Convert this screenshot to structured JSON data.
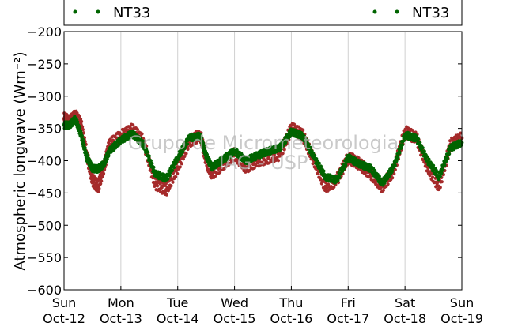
{
  "chart_data": {
    "type": "scatter",
    "title": "",
    "xlabel": "",
    "ylabel": "Atmospheric longwave (Wm⁻²)",
    "ylim": [
      -600,
      -200
    ],
    "yticks": [
      -200,
      -250,
      -300,
      -350,
      -400,
      -450,
      -500,
      -550,
      -600
    ],
    "xticks": [
      {
        "day": "Sun",
        "date": "Oct-12"
      },
      {
        "day": "Mon",
        "date": "Oct-13"
      },
      {
        "day": "Tue",
        "date": "Oct-14"
      },
      {
        "day": "Wed",
        "date": "Oct-15"
      },
      {
        "day": "Thu",
        "date": "Oct-16"
      },
      {
        "day": "Fri",
        "date": "Oct-17"
      },
      {
        "day": "Sat",
        "date": "Oct-18"
      },
      {
        "day": "Sun",
        "date": "Oct-19"
      }
    ],
    "grid": "vertical",
    "legend": {
      "placement": "top",
      "entries": [
        "NT33",
        "NT33"
      ]
    },
    "watermark": [
      "Grupo de Micrometeorologia",
      "IAG - USP"
    ],
    "series": [
      {
        "name": "NT33",
        "color": "#a52a2a",
        "x_days": [
          0,
          0.1,
          0.2,
          0.3,
          0.4,
          0.5,
          0.6,
          0.7,
          0.8,
          1.0,
          1.2,
          1.4,
          1.6,
          1.8,
          2.0,
          2.2,
          2.4,
          2.5,
          2.6,
          2.8,
          3.0,
          3.2,
          3.4,
          3.6,
          3.8,
          4.0,
          4.2,
          4.4,
          4.6,
          4.8,
          5.0,
          5.2,
          5.4,
          5.6,
          5.8,
          6.0,
          6.2,
          6.4,
          6.6,
          6.8,
          7.0
        ],
        "y": [
          -335,
          -340,
          -330,
          -345,
          -390,
          -430,
          -440,
          -410,
          -375,
          -362,
          -352,
          -370,
          -435,
          -445,
          -410,
          -370,
          -360,
          -400,
          -420,
          -405,
          -390,
          -410,
          -400,
          -395,
          -390,
          -350,
          -360,
          -400,
          -440,
          -430,
          -395,
          -405,
          -420,
          -440,
          -415,
          -355,
          -365,
          -410,
          -440,
          -375,
          -365
        ]
      },
      {
        "name": "NT33",
        "color": "#006400",
        "x_days": [
          0,
          0.1,
          0.2,
          0.3,
          0.4,
          0.5,
          0.6,
          0.7,
          0.8,
          1.0,
          1.2,
          1.4,
          1.6,
          1.8,
          2.0,
          2.2,
          2.4,
          2.5,
          2.6,
          2.8,
          3.0,
          3.2,
          3.4,
          3.6,
          3.8,
          4.0,
          4.2,
          4.4,
          4.6,
          4.8,
          5.0,
          5.2,
          5.4,
          5.6,
          5.8,
          6.0,
          6.2,
          6.4,
          6.6,
          6.8,
          7.0
        ],
        "y": [
          -345,
          -345,
          -335,
          -360,
          -395,
          -412,
          -413,
          -405,
          -385,
          -368,
          -358,
          -375,
          -420,
          -428,
          -395,
          -365,
          -362,
          -392,
          -410,
          -398,
          -385,
          -400,
          -392,
          -385,
          -380,
          -355,
          -362,
          -395,
          -425,
          -430,
          -395,
          -405,
          -412,
          -435,
          -410,
          -360,
          -365,
          -400,
          -425,
          -380,
          -372
        ]
      }
    ]
  }
}
